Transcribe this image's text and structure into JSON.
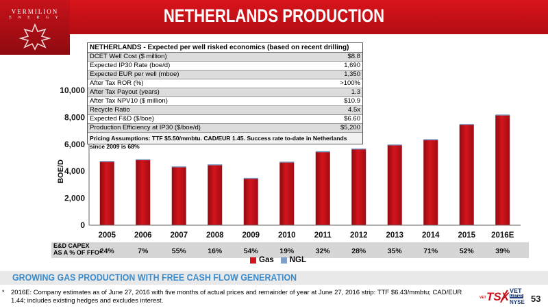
{
  "header": {
    "logo_line1": "VERMILION",
    "logo_line2": "E N E R G Y",
    "title": "NETHERLANDS PRODUCTION"
  },
  "colors": {
    "brand_red": "#c8121a",
    "gas": "#d4141c",
    "ngl": "#7f9fc7",
    "subtitle_blue": "#3b8bcd"
  },
  "econ_table": {
    "title": "NETHERLANDS - Expected per well risked economics (based on recent drilling)",
    "rows": [
      {
        "label": "DCET Well Cost ($ million)",
        "value": "$8.8"
      },
      {
        "label": "Expected IP30 Rate (boe/d)",
        "value": "1,690"
      },
      {
        "label": "Expected EUR per well (mboe)",
        "value": "1,350"
      },
      {
        "label": "After Tax ROR (%)",
        "value": ">100%"
      },
      {
        "label": "After Tax Payout (years)",
        "value": "1.3"
      },
      {
        "label": "After Tax NPV10 ($ million)",
        "value": "$10.9"
      },
      {
        "label": "Recycle Ratio",
        "value": "4.5x"
      },
      {
        "label": "Expected F&D ($/boe)",
        "value": "$6.60"
      },
      {
        "label": "Production Efficiency at IP30 ($/boe/d)",
        "value": "$5,200"
      }
    ],
    "footer": "Pricing Assumptions: TTF $5.50/mmbtu. CAD/EUR 1.45. Success rate to-date in Netherlands since 2009 is 68%"
  },
  "chart_data": {
    "type": "bar",
    "stacked": true,
    "categories": [
      "2005",
      "2006",
      "2007",
      "2008",
      "2009",
      "2010",
      "2011",
      "2012",
      "2013",
      "2014",
      "2015",
      "2016E"
    ],
    "series": [
      {
        "name": "Gas",
        "values": [
          4750,
          4880,
          4350,
          4500,
          3500,
          4700,
          5460,
          5660,
          5960,
          6340,
          7460,
          8160
        ]
      },
      {
        "name": "NGL",
        "values": [
          15,
          15,
          15,
          15,
          10,
          15,
          30,
          30,
          30,
          40,
          50,
          50
        ]
      }
    ],
    "ylabel": "BOE/D",
    "ylim": [
      0,
      10000
    ],
    "yticks": [
      "0",
      "2,000",
      "4,000",
      "6,000",
      "8,000",
      "10,000"
    ],
    "ytick_values": [
      0,
      2000,
      4000,
      6000,
      8000,
      10000
    ],
    "grid": false,
    "legend": "bottom-center",
    "capex_label_line1": "E&D CAPEX",
    "capex_label_line2": "AS A % OF FFO*",
    "capex_values": [
      "24%",
      "7%",
      "55%",
      "16%",
      "54%",
      "19%",
      "32%",
      "28%",
      "35%",
      "71%",
      "52%",
      "39%"
    ]
  },
  "subtitle": "GROWING GAS PRODUCTION WITH FREE CASH FLOW GENERATION",
  "footnote_marker": "*",
  "footnote": "2016E: Company estimates as of June 27, 2016 with five months of actual prices and remainder of year at June 27, 2016 strip: TTF $6.43/mmbtu; CAD/EUR 1.44; includes existing hedges and excludes interest.",
  "exchange_logo": {
    "tsx": "TSX",
    "vet_small": "VET",
    "vet": "VET",
    "listed": "LISTED",
    "nyse": "NYSE"
  },
  "page_number": "53"
}
